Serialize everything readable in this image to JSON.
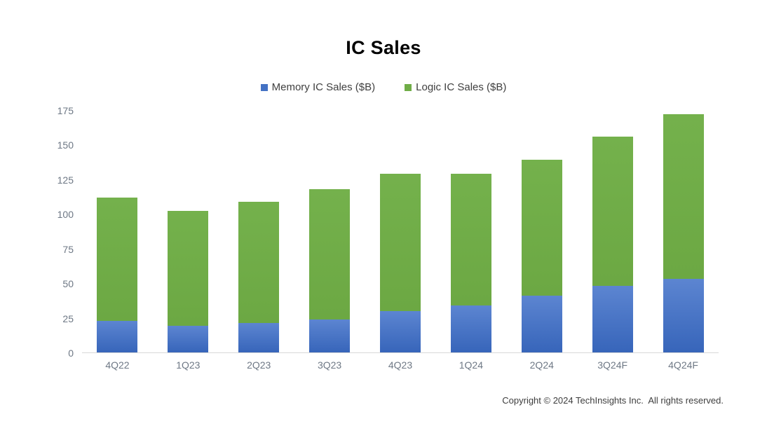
{
  "header": {
    "title": "IC Sales"
  },
  "legend": {
    "items": [
      {
        "label": "Memory IC Sales ($B)",
        "color": "#4472C4"
      },
      {
        "label": "Logic IC Sales ($B)",
        "color": "#70AD47"
      }
    ]
  },
  "chart_data": {
    "type": "bar",
    "stacked": true,
    "title": "IC Sales",
    "categories": [
      "4Q22",
      "1Q23",
      "2Q23",
      "3Q23",
      "4Q23",
      "1Q24",
      "2Q24",
      "3Q24F",
      "4Q24F"
    ],
    "series": [
      {
        "name": "Memory IC Sales ($B)",
        "color": "#4472C4",
        "gradient": [
          "#5c85d1",
          "#3765ba"
        ],
        "values": [
          23,
          19,
          21,
          24,
          30,
          34,
          41,
          48,
          53
        ]
      },
      {
        "name": "Logic IC Sales ($B)",
        "color": "#70AD47",
        "gradient": [
          "#74b14c",
          "#6ca843"
        ],
        "values": [
          89,
          83,
          88,
          94,
          99,
          95,
          98,
          108,
          119
        ]
      }
    ],
    "totals": [
      112,
      102,
      109,
      118,
      129,
      129,
      139,
      156,
      172
    ],
    "xlabel": "",
    "ylabel": "",
    "ylim": [
      0,
      175
    ],
    "y_ticks": [
      0,
      25,
      50,
      75,
      100,
      125,
      150,
      175
    ],
    "grid": false,
    "legend_position": "top"
  },
  "footer": {
    "copyright": "Copyright © 2024 TechInsights Inc.  All rights reserved."
  }
}
